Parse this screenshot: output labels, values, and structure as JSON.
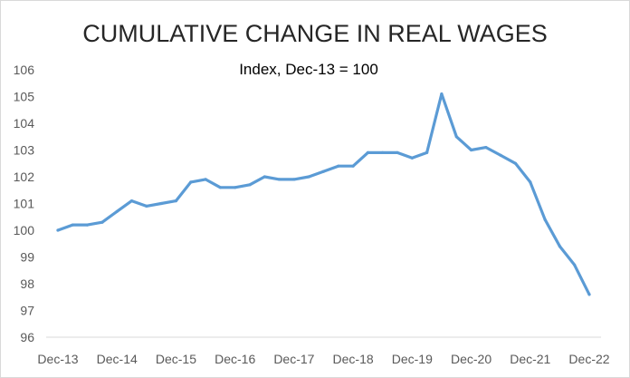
{
  "chart_data": {
    "type": "line",
    "title": "CUMULATIVE CHANGE IN REAL WAGES",
    "subtitle": "Index, Dec-13 = 100",
    "xlabel": "",
    "ylabel": "",
    "ylim": [
      96,
      106
    ],
    "yticks": [
      96,
      97,
      98,
      99,
      100,
      101,
      102,
      103,
      104,
      105,
      106
    ],
    "xtick_labels": [
      "Dec-13",
      "Dec-14",
      "Dec-15",
      "Dec-16",
      "Dec-17",
      "Dec-18",
      "Dec-19",
      "Dec-20",
      "Dec-21",
      "Dec-22"
    ],
    "grid": false,
    "legend": "none",
    "series": [
      {
        "color": "#5b9bd5",
        "values": [
          100.0,
          100.2,
          100.2,
          100.3,
          100.7,
          101.1,
          100.9,
          101.0,
          101.1,
          101.8,
          101.9,
          101.6,
          101.6,
          101.7,
          102.0,
          101.9,
          101.9,
          102.0,
          102.2,
          102.4,
          102.4,
          102.9,
          102.9,
          102.9,
          102.7,
          102.9,
          105.1,
          103.5,
          103.0,
          103.1,
          102.8,
          102.5,
          101.8,
          100.4,
          99.4,
          98.7,
          97.6
        ]
      }
    ]
  }
}
